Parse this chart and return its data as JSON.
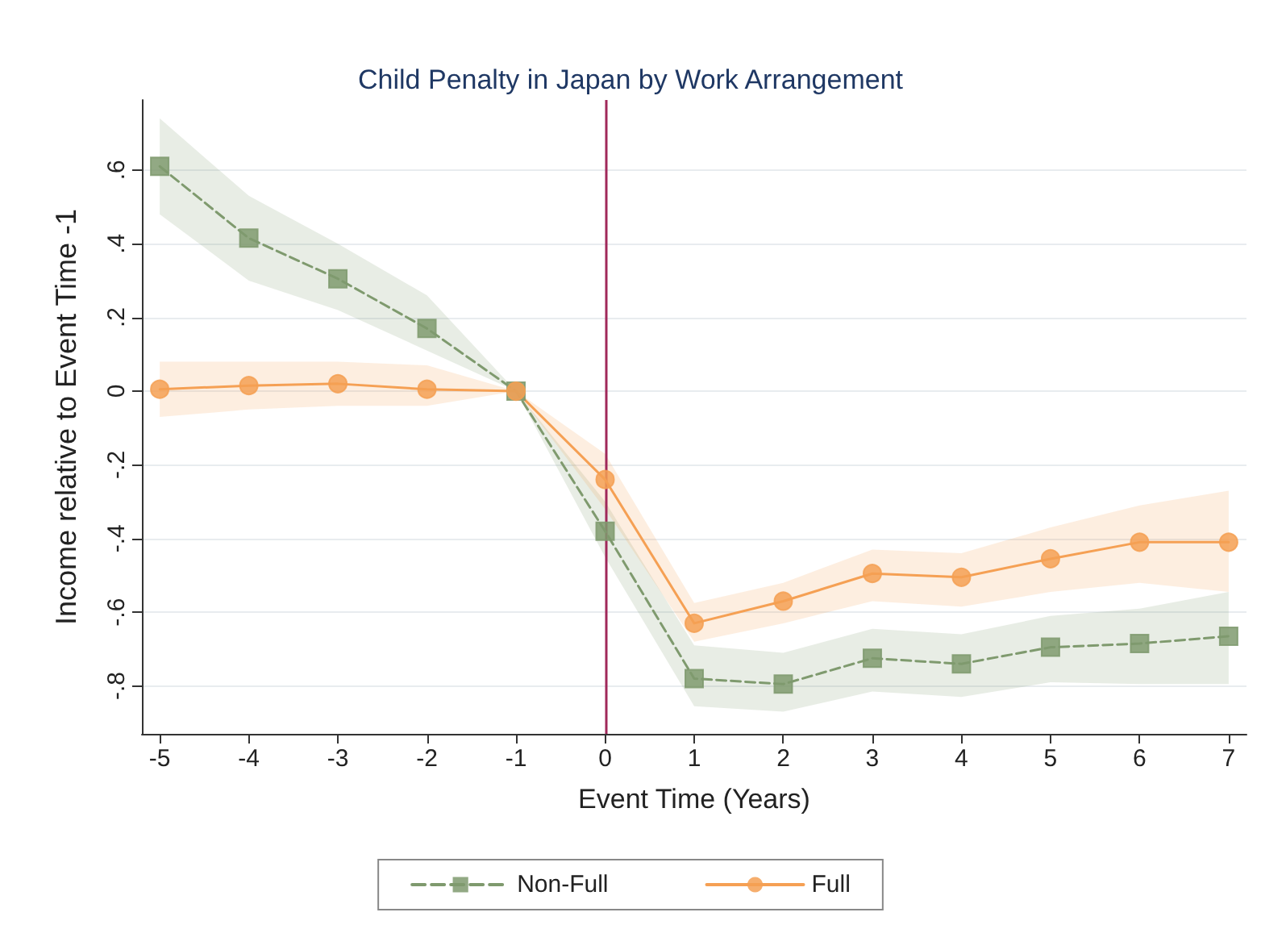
{
  "chart_data": {
    "type": "line",
    "title": "Child Penalty in Japan by Work Arrangement",
    "xlabel": "Event Time (Years)",
    "ylabel": "Income relative to Event Time -1",
    "x": [
      -5,
      -4,
      -3,
      -2,
      -1,
      0,
      1,
      2,
      3,
      4,
      5,
      6,
      7
    ],
    "series": [
      {
        "name": "Non-Full",
        "color": "#7f9a6e",
        "marker": "square",
        "line_style": "dashed",
        "values": [
          0.61,
          0.415,
          0.305,
          0.17,
          0,
          -0.38,
          -0.78,
          -0.795,
          -0.725,
          -0.74,
          -0.695,
          -0.685,
          -0.665
        ],
        "lower": [
          0.48,
          0.3,
          0.22,
          0.11,
          0,
          -0.45,
          -0.855,
          -0.87,
          -0.815,
          -0.83,
          -0.79,
          -0.795,
          -0.795
        ],
        "upper": [
          0.74,
          0.53,
          0.4,
          0.26,
          0,
          -0.3,
          -0.69,
          -0.71,
          -0.645,
          -0.66,
          -0.61,
          -0.59,
          -0.545
        ]
      },
      {
        "name": "Full",
        "color": "#f5a054",
        "marker": "circle",
        "line_style": "solid",
        "values": [
          0.005,
          0.015,
          0.02,
          0.005,
          0,
          -0.24,
          -0.63,
          -0.57,
          -0.495,
          -0.505,
          -0.455,
          -0.41,
          -0.41
        ],
        "lower": [
          -0.07,
          -0.05,
          -0.04,
          -0.04,
          0,
          -0.32,
          -0.68,
          -0.63,
          -0.57,
          -0.585,
          -0.545,
          -0.52,
          -0.545
        ],
        "upper": [
          0.08,
          0.08,
          0.08,
          0.07,
          0,
          -0.17,
          -0.575,
          -0.52,
          -0.43,
          -0.44,
          -0.37,
          -0.31,
          -0.27
        ]
      }
    ],
    "xlim": [
      -5.2,
      7.2
    ],
    "xticks": [
      -5,
      -4,
      -3,
      -2,
      -1,
      0,
      1,
      2,
      3,
      4,
      5,
      6,
      7
    ],
    "ylim": [
      -0.93,
      0.79
    ],
    "yticks": [
      {
        "value": -0.8,
        "label": "-.8"
      },
      {
        "value": -0.6,
        "label": "-.6"
      },
      {
        "value": -0.4,
        "label": "-.4"
      },
      {
        "value": -0.2,
        "label": "-.2"
      },
      {
        "value": 0,
        "label": "0"
      },
      {
        "value": 0.2,
        "label": ".2"
      },
      {
        "value": 0.4,
        "label": ".4"
      },
      {
        "value": 0.6,
        "label": ".6"
      }
    ],
    "ref_lines": [
      {
        "axis": "x",
        "value": 0,
        "color": "#a0285a"
      }
    ],
    "grid": "y",
    "legend": "bottom"
  }
}
